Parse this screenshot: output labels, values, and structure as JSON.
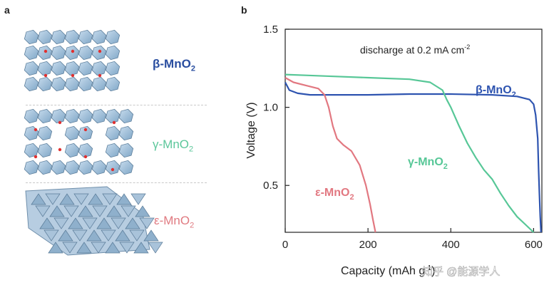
{
  "panel_a": {
    "letter": "a",
    "structures": [
      {
        "name": "beta",
        "label_main": "β-MnO",
        "label_sub": "2",
        "color": "#2a4ea0"
      },
      {
        "name": "gamma",
        "label_main": "γ-MnO",
        "label_sub": "2",
        "color": "#5cc79b"
      },
      {
        "name": "epsilon",
        "label_main": "ε-MnO",
        "label_sub": "2",
        "color": "#e07a80"
      }
    ]
  },
  "panel_b": {
    "letter": "b"
  },
  "watermark": "知乎 @能源学人",
  "chart_data": {
    "type": "line",
    "title": "",
    "annotation_main": "discharge at 0.2 mA cm",
    "annotation_sup": "-2",
    "xlabel_main": "Capacity (mAh g",
    "xlabel_sup": "-1",
    "xlabel_end": ")",
    "ylabel": "Voltage (V)",
    "xlim": [
      0,
      620
    ],
    "ylim": [
      0.2,
      1.5
    ],
    "xticks": [
      0,
      200,
      400,
      600
    ],
    "xtick_labels": [
      "0",
      "200",
      "400",
      "600"
    ],
    "yticks": [
      0.5,
      1.0,
      1.5
    ],
    "ytick_labels": [
      "0.5",
      "1.0",
      "1.5"
    ],
    "series": [
      {
        "name": "β-MnO2",
        "label_main": "β-MnO",
        "label_sub": "2",
        "color": "#2e54b0",
        "x": [
          0,
          10,
          30,
          60,
          120,
          200,
          300,
          400,
          500,
          560,
          590,
          600,
          605,
          610,
          612,
          614,
          616,
          618
        ],
        "y": [
          1.16,
          1.11,
          1.09,
          1.08,
          1.08,
          1.08,
          1.085,
          1.085,
          1.08,
          1.07,
          1.05,
          1.02,
          0.95,
          0.8,
          0.6,
          0.45,
          0.3,
          0.2
        ]
      },
      {
        "name": "γ-MnO2",
        "label_main": "γ-MnO",
        "label_sub": "2",
        "color": "#57c797",
        "x": [
          0,
          50,
          100,
          200,
          300,
          350,
          380,
          390,
          400,
          420,
          440,
          460,
          480,
          500,
          520,
          540,
          560,
          580,
          600
        ],
        "y": [
          1.21,
          1.205,
          1.2,
          1.19,
          1.18,
          1.16,
          1.11,
          1.05,
          1.0,
          0.88,
          0.77,
          0.68,
          0.6,
          0.54,
          0.45,
          0.37,
          0.3,
          0.25,
          0.2
        ]
      },
      {
        "name": "ε-MnO2",
        "label_main": "ε-MnO",
        "label_sub": "2",
        "color": "#e27881",
        "x": [
          0,
          20,
          50,
          80,
          95,
          105,
          115,
          125,
          140,
          160,
          180,
          195,
          205,
          212,
          218
        ],
        "y": [
          1.19,
          1.16,
          1.14,
          1.12,
          1.08,
          1.0,
          0.88,
          0.8,
          0.76,
          0.72,
          0.63,
          0.5,
          0.38,
          0.28,
          0.2
        ]
      }
    ]
  }
}
